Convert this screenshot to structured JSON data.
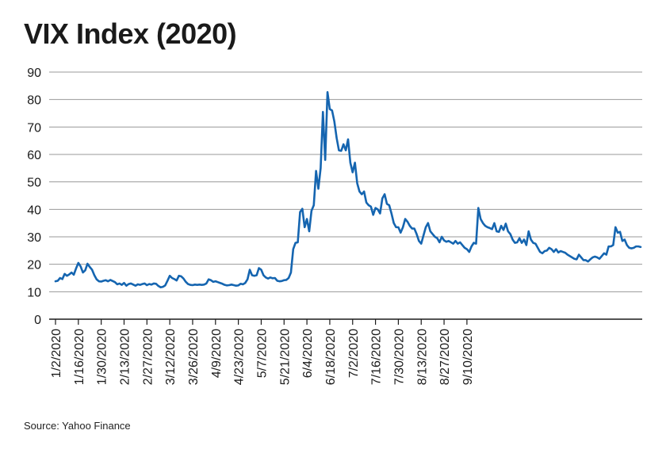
{
  "chart_data": {
    "type": "line",
    "title": "VIX Index (2020)",
    "source": "Source: Yahoo Finance",
    "xlabel": "",
    "ylabel": "",
    "ylim": [
      0,
      90
    ],
    "yticks": [
      0,
      10,
      20,
      30,
      40,
      50,
      60,
      70,
      80,
      90
    ],
    "grid": true,
    "line_color": "#1565b0",
    "x_tick_labels": [
      "1/2/2020",
      "1/16/2020",
      "1/30/2020",
      "2/13/2020",
      "2/27/2020",
      "3/12/2020",
      "3/26/2020",
      "4/9/2020",
      "4/23/2020",
      "5/7/2020",
      "5/21/2020",
      "6/4/2020",
      "6/18/2020",
      "7/2/2020",
      "7/16/2020",
      "7/30/2020",
      "8/13/2020",
      "8/27/2020",
      "9/10/2020"
    ],
    "series": [
      {
        "values": [
          13.8,
          14.0,
          15.0,
          14.6,
          16.5,
          15.8,
          16.3,
          17.0,
          16.2,
          18.5,
          20.5,
          19.2,
          17.0,
          17.8,
          20.2,
          19.0,
          18.0,
          16.0,
          14.5,
          13.8,
          13.7,
          14.0,
          14.2,
          13.8,
          14.3,
          13.9,
          13.5,
          12.7,
          13.0,
          12.5,
          13.2,
          12.2,
          12.8,
          13.0,
          12.6,
          12.2,
          12.7,
          12.5,
          12.8,
          13.0,
          12.4,
          12.8,
          12.6,
          13.0,
          12.9,
          12.1,
          11.6,
          11.8,
          12.3,
          14.0,
          15.8,
          15.0,
          14.6,
          14.1,
          15.8,
          15.6,
          14.8,
          13.6,
          12.8,
          12.5,
          12.4,
          12.6,
          12.5,
          12.6,
          12.5,
          12.6,
          13.0,
          14.5,
          14.2,
          13.6,
          13.8,
          13.5,
          13.2,
          12.9,
          12.5,
          12.3,
          12.4,
          12.6,
          12.4,
          12.2,
          12.3,
          12.9,
          12.7,
          13.2,
          14.5,
          18.0,
          16.0,
          15.8,
          16.0,
          18.6,
          18.0,
          16.0,
          15.2,
          14.8,
          15.2,
          14.9,
          15.0,
          14.0,
          13.8,
          13.9,
          14.2,
          14.3,
          15.0,
          17.0,
          25.5,
          27.8,
          28.0,
          39.0,
          40.2,
          33.5,
          36.5,
          32.0,
          39.5,
          41.5,
          54.0,
          47.5,
          55.0,
          75.5,
          58.0,
          82.7,
          76.5,
          76.0,
          72.0,
          66.0,
          61.5,
          61.3,
          63.7,
          61.5,
          65.5,
          57.0,
          53.5,
          57.0,
          49.5,
          46.5,
          45.5,
          46.5,
          42.5,
          41.5,
          41.0,
          38.0,
          40.5,
          40.0,
          38.5,
          44.0,
          45.5,
          42.0,
          41.5,
          38.5,
          35.0,
          33.5,
          33.5,
          31.5,
          33.5,
          36.5,
          35.5,
          34.0,
          33.0,
          33.0,
          31.0,
          28.5,
          27.5,
          30.5,
          33.5,
          35.0,
          32.0,
          31.0,
          30.0,
          29.5,
          28.0,
          30.0,
          28.7,
          28.2,
          28.5,
          28.0,
          27.5,
          28.5,
          27.5,
          28.0,
          27.0,
          26.0,
          25.5,
          24.5,
          26.5,
          27.8,
          27.5,
          40.5,
          36.5,
          35.0,
          34.0,
          33.5,
          33.2,
          32.8,
          35.0,
          32.0,
          31.8,
          34.0,
          32.5,
          34.8,
          32.0,
          31.0,
          29.0,
          27.8,
          28.0,
          29.5,
          27.8,
          29.0,
          27.0,
          32.0,
          29.0,
          27.8,
          27.5,
          26.0,
          24.5,
          24.0,
          24.8,
          25.0,
          26.0,
          25.5,
          24.5,
          25.5,
          24.3,
          24.8,
          24.5,
          24.2,
          23.5,
          23.0,
          22.5,
          22.0,
          21.8,
          23.5,
          22.5,
          21.5,
          21.5,
          21.0,
          21.8,
          22.5,
          22.8,
          22.5,
          22.0,
          23.0,
          24.0,
          23.5,
          26.5,
          26.5,
          27.0,
          33.5,
          31.5,
          31.8,
          28.5,
          29.0,
          27.0,
          26.0,
          25.8,
          26.0,
          26.5,
          26.5,
          26.3
        ]
      }
    ]
  }
}
